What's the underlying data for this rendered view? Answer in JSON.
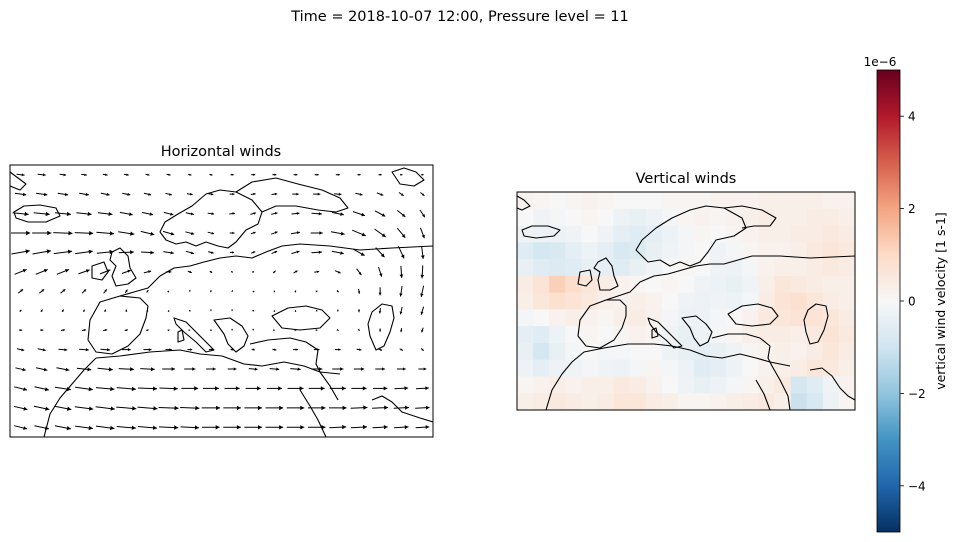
{
  "suptitle": "Time = 2018-10-07 12:00, Pressure level = 11",
  "panels": {
    "left_title": "Horizontal winds",
    "right_title": "Vertical winds"
  },
  "colorbar": {
    "label": "vertical wind velocity [1 s-1]",
    "offset_text": "1e−6",
    "ticks": [
      "4",
      "2",
      "0",
      "−2",
      "−4"
    ],
    "cmap": "RdBu_r",
    "vmin": -5,
    "vmax": 5
  },
  "chart_data": [
    {
      "type": "quiver",
      "title": "Horizontal winds",
      "description_values": {
        "columns": 20,
        "rows": 14,
        "lon_range": [
          -30,
          55
        ],
        "lat_range": [
          15,
          70
        ],
        "u": [
          [
            1,
            1,
            0.8,
            0.7,
            0.6,
            0.6,
            0.5,
            0.5,
            0.4,
            0.4,
            0.4,
            0.5,
            0.5,
            0.5,
            0.5,
            0.5,
            0.4,
            0.4,
            0.3,
            0.3
          ],
          [
            1.4,
            1.4,
            1.3,
            1.2,
            1.1,
            1,
            0.9,
            0.8,
            0.7,
            0.6,
            0.6,
            0.6,
            0.7,
            0.8,
            0.9,
            0.9,
            0.9,
            0.8,
            0.6,
            0.5
          ],
          [
            2,
            2,
            2,
            1.9,
            1.8,
            1.6,
            1.4,
            1.2,
            1,
            0.8,
            0.7,
            0.7,
            0.8,
            1,
            1.3,
            1.5,
            1.5,
            1.3,
            1,
            0.6
          ],
          [
            2.4,
            2.4,
            2.4,
            2.3,
            2.2,
            2,
            1.7,
            1.4,
            1.1,
            0.8,
            0.6,
            0.6,
            0.8,
            1.1,
            1.5,
            1.7,
            1.7,
            1.4,
            1,
            0.5
          ],
          [
            2.3,
            2.3,
            2.3,
            2.2,
            2.1,
            1.9,
            1.6,
            1.3,
            1,
            0.7,
            0.5,
            0.5,
            0.7,
            1,
            1.3,
            1.5,
            1.4,
            1.1,
            0.7,
            0.2
          ],
          [
            1.5,
            1.5,
            1.5,
            1.4,
            1.3,
            1.1,
            0.9,
            0.7,
            0.5,
            0.3,
            0.2,
            0.2,
            0.3,
            0.5,
            0.6,
            0.7,
            0.6,
            0.4,
            0.1,
            -0.1
          ],
          [
            0.6,
            0.6,
            0.6,
            0.5,
            0.4,
            0.3,
            0.2,
            0.1,
            0,
            -0.1,
            -0.1,
            -0.1,
            0,
            0.1,
            0.2,
            0.2,
            0.1,
            0,
            -0.2,
            -0.3
          ],
          [
            0.2,
            0.2,
            0.2,
            0.1,
            0.1,
            0,
            0,
            0,
            0,
            0,
            0,
            0,
            0,
            0,
            0,
            0,
            0,
            -0.1,
            -0.2,
            -0.3
          ],
          [
            0.4,
            0.4,
            0.5,
            0.5,
            0.5,
            0.4,
            0.3,
            0.2,
            0.1,
            0,
            0,
            0,
            0.1,
            0.2,
            0.2,
            0.2,
            0.1,
            0,
            -0.1,
            -0.2
          ],
          [
            0.9,
            1,
            1.1,
            1.2,
            1.2,
            1.1,
            1,
            0.8,
            0.6,
            0.5,
            0.4,
            0.4,
            0.5,
            0.6,
            0.7,
            0.7,
            0.6,
            0.5,
            0.4,
            0.3
          ],
          [
            1.3,
            1.4,
            1.6,
            1.8,
            1.9,
            1.9,
            1.8,
            1.6,
            1.4,
            1.2,
            1.1,
            1.1,
            1.2,
            1.3,
            1.4,
            1.4,
            1.3,
            1.2,
            1.1,
            1
          ],
          [
            1.6,
            1.8,
            2,
            2.2,
            2.3,
            2.4,
            2.4,
            2.3,
            2.1,
            2,
            1.9,
            1.9,
            1.9,
            2,
            2,
            2,
            1.9,
            1.8,
            1.7,
            1.6
          ],
          [
            1.7,
            1.9,
            2.1,
            2.3,
            2.4,
            2.5,
            2.5,
            2.5,
            2.4,
            2.3,
            2.2,
            2.2,
            2.2,
            2.2,
            2.2,
            2.2,
            2.1,
            2,
            1.9,
            1.8
          ],
          [
            1.6,
            1.8,
            2,
            2.2,
            2.3,
            2.4,
            2.4,
            2.4,
            2.3,
            2.2,
            2.2,
            2.2,
            2.2,
            2.2,
            2.2,
            2.1,
            2,
            1.9,
            1.8,
            1.7
          ]
        ],
        "v": [
          [
            -0.1,
            -0.1,
            -0.1,
            -0.1,
            -0.1,
            -0.1,
            -0.1,
            -0.1,
            -0.1,
            -0.1,
            0,
            0,
            0,
            0,
            0,
            0,
            0,
            0,
            0,
            0
          ],
          [
            -0.2,
            -0.2,
            -0.2,
            -0.2,
            -0.2,
            -0.2,
            -0.2,
            -0.2,
            -0.1,
            -0.1,
            0,
            0.1,
            0.1,
            0,
            0,
            -0.1,
            -0.2,
            -0.3,
            -0.4,
            -0.4
          ],
          [
            -0.2,
            -0.2,
            -0.2,
            -0.2,
            -0.2,
            -0.3,
            -0.3,
            -0.3,
            -0.2,
            -0.1,
            0.1,
            0.2,
            0.2,
            0.1,
            -0.1,
            -0.3,
            -0.5,
            -0.7,
            -0.8,
            -0.9
          ],
          [
            0,
            0,
            -0.1,
            -0.1,
            -0.2,
            -0.3,
            -0.4,
            -0.4,
            -0.3,
            -0.2,
            0,
            0.2,
            0.3,
            0.2,
            0,
            -0.3,
            -0.7,
            -1,
            -1.2,
            -1.3
          ],
          [
            0.4,
            0.4,
            0.3,
            0.3,
            0.2,
            0.1,
            -0.1,
            -0.2,
            -0.3,
            -0.2,
            0,
            0.2,
            0.3,
            0.3,
            0.1,
            -0.3,
            -0.8,
            -1.2,
            -1.5,
            -1.6
          ],
          [
            0.6,
            0.6,
            0.6,
            0.5,
            0.5,
            0.4,
            0.2,
            0,
            -0.2,
            -0.2,
            -0.1,
            0.1,
            0.3,
            0.3,
            0.1,
            -0.3,
            -0.8,
            -1.2,
            -1.5,
            -1.6
          ],
          [
            0.5,
            0.5,
            0.5,
            0.5,
            0.5,
            0.4,
            0.3,
            0.1,
            -0.1,
            -0.2,
            -0.1,
            0.1,
            0.2,
            0.2,
            0.1,
            -0.2,
            -0.6,
            -1,
            -1.3,
            -1.4
          ],
          [
            0.2,
            0.3,
            0.3,
            0.3,
            0.3,
            0.3,
            0.2,
            0.1,
            0,
            -0.1,
            -0.1,
            0,
            0.1,
            0.1,
            0,
            -0.2,
            -0.4,
            -0.7,
            -0.9,
            -1
          ],
          [
            0,
            0,
            0.1,
            0.1,
            0.1,
            0.1,
            0.1,
            0.1,
            0,
            0,
            -0.1,
            -0.1,
            0,
            0,
            0,
            -0.1,
            -0.2,
            -0.4,
            -0.5,
            -0.6
          ],
          [
            -0.2,
            -0.2,
            -0.1,
            -0.1,
            -0.1,
            0,
            0,
            0,
            0,
            0,
            -0.1,
            -0.1,
            -0.1,
            0,
            0,
            0,
            -0.1,
            -0.2,
            -0.2,
            -0.3
          ],
          [
            -0.3,
            -0.3,
            -0.3,
            -0.2,
            -0.2,
            -0.1,
            -0.1,
            0,
            0,
            0,
            0,
            -0.1,
            -0.1,
            -0.1,
            0,
            0,
            0,
            0,
            0,
            0
          ],
          [
            -0.4,
            -0.4,
            -0.3,
            -0.3,
            -0.2,
            -0.2,
            -0.1,
            -0.1,
            0,
            0,
            0,
            0,
            0,
            0,
            0,
            0,
            0,
            0,
            0.1,
            0.1
          ],
          [
            -0.4,
            -0.4,
            -0.4,
            -0.3,
            -0.3,
            -0.2,
            -0.2,
            -0.1,
            -0.1,
            0,
            0,
            0,
            0,
            0,
            0,
            0,
            0.1,
            0.1,
            0.1,
            0.1
          ],
          [
            -0.4,
            -0.4,
            -0.4,
            -0.3,
            -0.3,
            -0.2,
            -0.2,
            -0.1,
            -0.1,
            0,
            0,
            0,
            0,
            0,
            0,
            0.1,
            0.1,
            0.1,
            0.1,
            0.1
          ]
        ]
      }
    },
    {
      "type": "heatmap",
      "title": "Vertical winds",
      "colorbar_label": "vertical wind velocity [1 s-1]",
      "vmin": -5e-06,
      "vmax": 5e-06,
      "lon_range": [
        -30,
        55
      ],
      "lat_range": [
        15,
        70
      ],
      "values_1e-6": [
        [
          0.2,
          0.1,
          0,
          0.1,
          0.2,
          0.1,
          0,
          0,
          0,
          0.1,
          0.1,
          0.1,
          0.2,
          0.2,
          0.2,
          0.3,
          0.3,
          0.3,
          0.3,
          0.2,
          0.2
        ],
        [
          0,
          -0.2,
          -0.1,
          0,
          0.1,
          0,
          -0.3,
          -0.4,
          -0.3,
          -0.1,
          0.1,
          0.2,
          0.1,
          0.2,
          0.3,
          0.4,
          0.3,
          0.3,
          0.4,
          0.4,
          0.3
        ],
        [
          -0.2,
          -0.3,
          -0.3,
          -0.2,
          0,
          -0.2,
          -0.5,
          -0.6,
          -0.5,
          -0.3,
          -0.1,
          0.1,
          0,
          0.1,
          0.2,
          0.3,
          0.3,
          0.4,
          0.4,
          0.5,
          0.4
        ],
        [
          -0.6,
          -0.9,
          -0.8,
          -0.5,
          -0.3,
          -0.5,
          -0.8,
          -0.7,
          -0.4,
          -0.2,
          -0.1,
          0,
          -0.2,
          -0.1,
          0.1,
          0.2,
          0.2,
          0.3,
          0.5,
          0.6,
          0.5
        ],
        [
          -0.4,
          -0.6,
          -0.7,
          -0.6,
          -0.4,
          -0.5,
          -0.6,
          -0.4,
          -0.2,
          0,
          0.1,
          0,
          -0.2,
          -0.3,
          -0.1,
          0.2,
          0.3,
          0.3,
          0.4,
          0.5,
          0.4
        ],
        [
          0.4,
          0.7,
          1.2,
          0.9,
          0.6,
          0.4,
          0.2,
          0.1,
          0,
          0.1,
          0,
          -0.2,
          -0.3,
          -0.4,
          -0.2,
          0.3,
          0.6,
          0.5,
          0.4,
          0.3,
          0.3
        ],
        [
          0.3,
          0.6,
          0.8,
          0.7,
          0.5,
          0.3,
          0.2,
          0.3,
          0.2,
          0,
          -0.2,
          -0.3,
          -0.2,
          -0.3,
          -0.1,
          0.4,
          0.7,
          0.8,
          0.6,
          0.4,
          0.3
        ],
        [
          -0.1,
          0,
          0.2,
          0.3,
          0.2,
          0.1,
          0.3,
          0.4,
          0.2,
          -0.1,
          -0.3,
          -0.3,
          -0.1,
          0,
          0.2,
          0.5,
          0.6,
          0.7,
          0.7,
          0.6,
          0.4
        ],
        [
          -0.5,
          -0.6,
          -0.3,
          0,
          0.1,
          0,
          0.1,
          0.2,
          0.1,
          -0.2,
          -0.4,
          -0.3,
          -0.1,
          0.1,
          0.3,
          0.4,
          0.4,
          0.3,
          0.5,
          0.7,
          0.5
        ],
        [
          -0.4,
          -0.9,
          -0.4,
          -0.1,
          0,
          -0.1,
          -0.1,
          0,
          0,
          -0.3,
          -0.4,
          -0.5,
          -0.4,
          -0.2,
          0.1,
          0.2,
          0.3,
          0.2,
          0.4,
          0.6,
          0.4
        ],
        [
          -0.3,
          -0.5,
          -0.3,
          -0.2,
          -0.1,
          -0.2,
          -0.3,
          -0.1,
          0.1,
          -0.1,
          -0.3,
          -0.6,
          -0.5,
          -0.3,
          0,
          0.2,
          0.3,
          0.4,
          0.6,
          0.5,
          0.3
        ],
        [
          0.1,
          0.2,
          0.3,
          0.2,
          0.3,
          0.3,
          0.5,
          0.4,
          0.2,
          0,
          -0.2,
          -0.4,
          -0.3,
          -0.1,
          0.1,
          0.3,
          0.5,
          -0.9,
          -0.6,
          -0.2,
          0.2
        ],
        [
          0.3,
          0.4,
          0.5,
          0.4,
          0.3,
          0.4,
          0.6,
          0.6,
          0.4,
          0.3,
          0.1,
          0.1,
          0.2,
          0.3,
          0.4,
          0.5,
          0.3,
          -1.1,
          -0.8,
          -0.3,
          0.1
        ]
      ]
    }
  ]
}
